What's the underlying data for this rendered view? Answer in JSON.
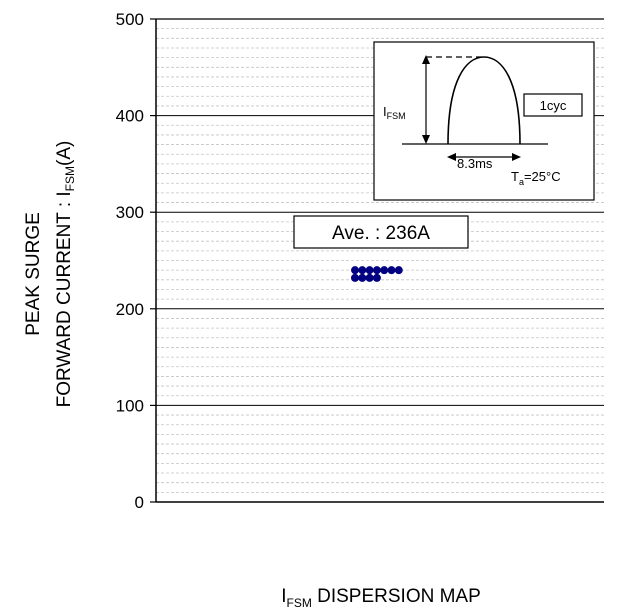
{
  "chart_data": {
    "type": "scatter",
    "title": "",
    "xlabel": {
      "main": "I",
      "sub": "FSM",
      "rest": " DISPERSION MAP"
    },
    "ylabel": {
      "line1": "PEAK SURGE",
      "line2_main": "FORWARD CURRENT : I",
      "line2_sub": "FSM",
      "line2_rest": "(A)"
    },
    "ylim": [
      0,
      500
    ],
    "yticks": [
      0,
      100,
      200,
      300,
      400,
      500
    ],
    "ytick_labels": [
      "0",
      "100",
      "200",
      "300",
      "400",
      "500"
    ],
    "grid": {
      "major_step": 100,
      "minor_step": 10
    },
    "series": [
      {
        "color": "#000080",
        "points": [
          {
            "col": 0,
            "y": 240
          },
          {
            "col": 1,
            "y": 240
          },
          {
            "col": 2,
            "y": 240
          },
          {
            "col": 3,
            "y": 240
          },
          {
            "col": 4,
            "y": 240
          },
          {
            "col": 5,
            "y": 240
          },
          {
            "col": 6,
            "y": 240
          },
          {
            "col": 0,
            "y": 232
          },
          {
            "col": 1,
            "y": 232
          },
          {
            "col": 2,
            "y": 232
          },
          {
            "col": 3,
            "y": 232
          }
        ]
      }
    ],
    "annotations": {
      "average_label": "Ave. : 236A",
      "inset": {
        "ifsm_main": "I",
        "ifsm_sub": "FSM",
        "cycle_label": "1cyc",
        "time_label": "8.3ms",
        "temp_main": "T",
        "temp_sub": "a",
        "temp_rest": "=25°C"
      }
    }
  }
}
